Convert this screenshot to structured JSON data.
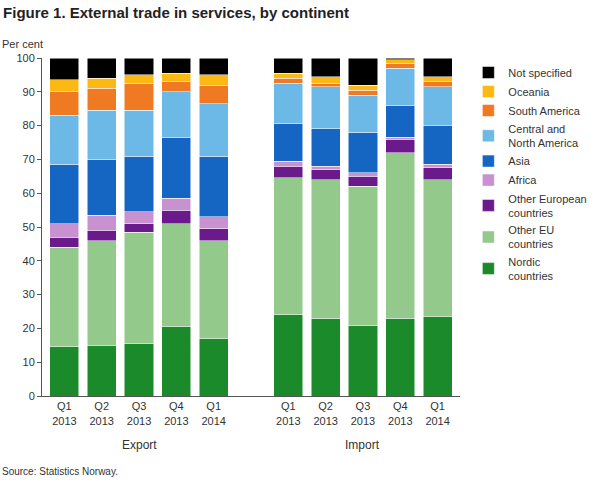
{
  "chart_data": {
    "type": "bar",
    "stacked": true,
    "title": "Figure 1. External trade in services, by continent",
    "y_label": "Per cent",
    "source": "Source: Statistics Norway.",
    "categories": [
      "Q1 2013",
      "Q2 2013",
      "Q3 2013",
      "Q4 2013",
      "Q1 2014",
      null,
      "Q1 2013",
      "Q2 2013",
      "Q3 2013",
      "Q4 2013",
      "Q1 2014"
    ],
    "groups": [
      "Export",
      "Import"
    ],
    "ylim": [
      0,
      100
    ],
    "yticks": [
      0,
      10,
      20,
      30,
      40,
      50,
      60,
      70,
      80,
      90,
      100
    ],
    "grid": false,
    "legend": "right",
    "series": [
      {
        "name": "Nordic countries",
        "color": "#1b8a2a",
        "values": [
          14.5,
          15,
          15.5,
          20.5,
          17,
          null,
          24,
          23,
          21,
          23,
          23.5
        ]
      },
      {
        "name": "Other EU countries",
        "color": "#93c98a",
        "values": [
          29.5,
          31,
          33,
          30.5,
          29,
          null,
          40.5,
          41,
          41,
          49,
          40.5
        ]
      },
      {
        "name": "Other European countries",
        "color": "#6b1a8c",
        "values": [
          3,
          3,
          2.5,
          4,
          3.5,
          null,
          3.5,
          3,
          3,
          4,
          3.5
        ]
      },
      {
        "name": "Africa",
        "color": "#c891d0",
        "values": [
          4,
          4.5,
          3.5,
          3.5,
          3.5,
          null,
          1.5,
          1,
          1,
          0.5,
          1
        ]
      },
      {
        "name": "Asia",
        "color": "#1466c2",
        "values": [
          17.5,
          16.5,
          16.5,
          18,
          18,
          null,
          11,
          11,
          12,
          9.5,
          11.5
        ]
      },
      {
        "name": "Central and North America",
        "color": "#6cb8e6",
        "values": [
          14.5,
          14.5,
          13.5,
          13.5,
          15.5,
          null,
          12,
          12.5,
          11,
          11,
          11.5
        ]
      },
      {
        "name": "South America",
        "color": "#f07a22",
        "values": [
          7,
          6.5,
          8,
          3,
          5.5,
          null,
          1.5,
          1,
          1.5,
          1.5,
          1.5
        ]
      },
      {
        "name": "Oceania",
        "color": "#fcb813",
        "values": [
          3.5,
          3,
          2.5,
          2.5,
          3,
          null,
          1.5,
          2,
          1.5,
          1,
          1.5
        ]
      },
      {
        "name": "Not specified",
        "color": "#000000",
        "values": [
          6.5,
          6,
          5,
          4.5,
          5,
          null,
          4.5,
          5.5,
          8,
          0.5,
          5.5
        ]
      }
    ]
  }
}
